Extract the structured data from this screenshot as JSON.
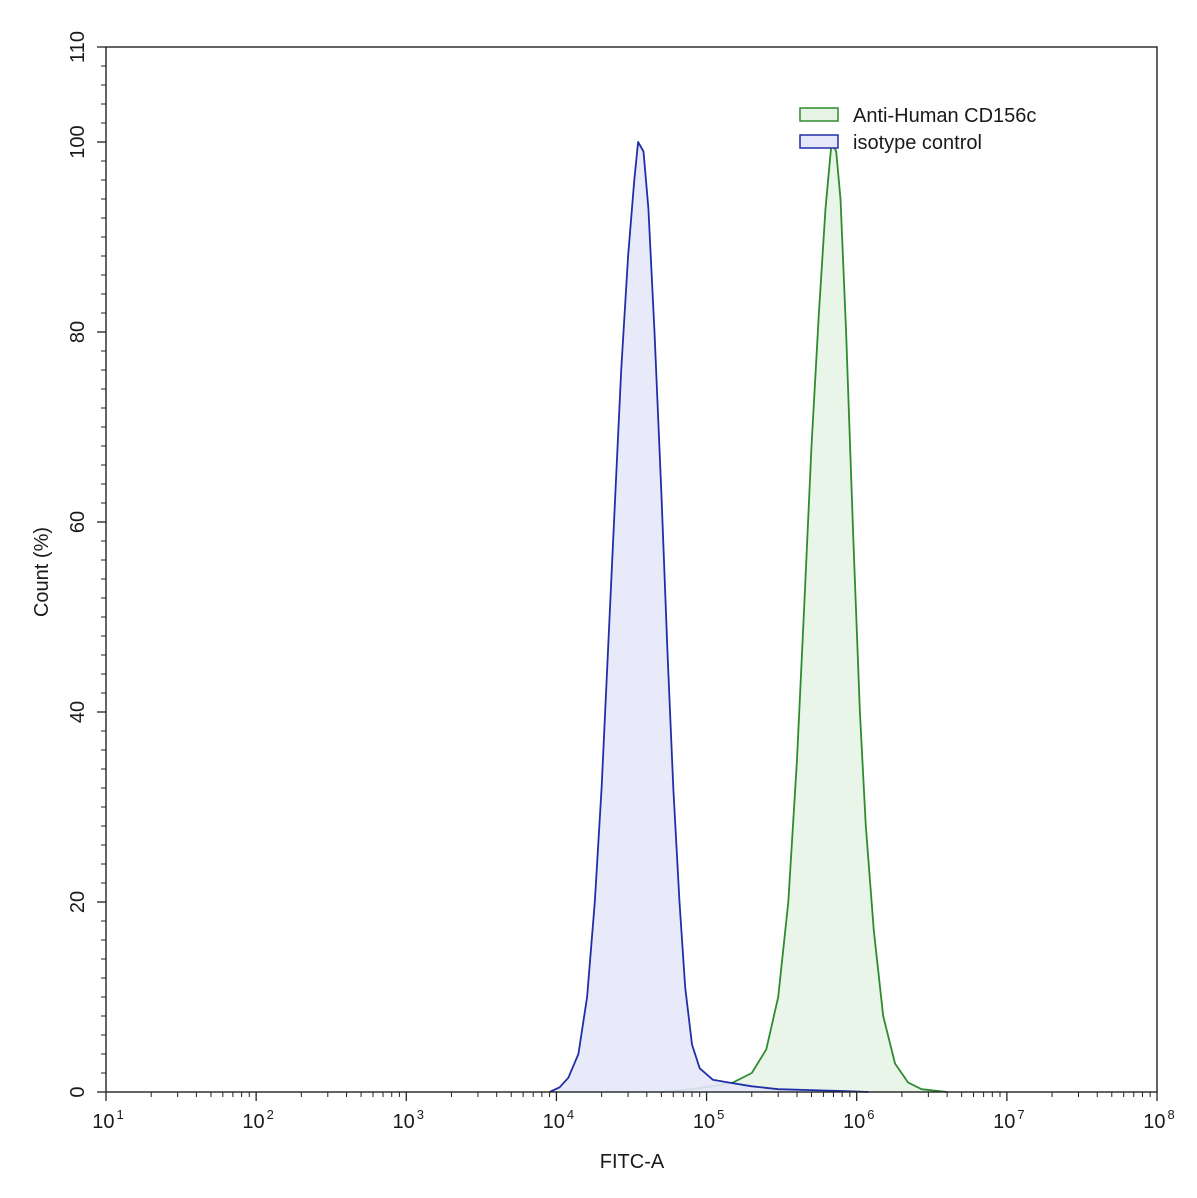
{
  "chart_data": {
    "type": "area",
    "title": "",
    "xlabel": "FITC-A",
    "ylabel": "Count  (%)",
    "xscale": "log",
    "xlim": [
      10,
      100000000
    ],
    "ylim": [
      0,
      110
    ],
    "xticks": [
      {
        "base": "10",
        "exp": "1",
        "value": 10
      },
      {
        "base": "10",
        "exp": "2",
        "value": 100
      },
      {
        "base": "10",
        "exp": "3",
        "value": 1000
      },
      {
        "base": "10",
        "exp": "4",
        "value": 10000
      },
      {
        "base": "10",
        "exp": "5",
        "value": 100000
      },
      {
        "base": "10",
        "exp": "6",
        "value": 1000000
      },
      {
        "base": "10",
        "exp": "7",
        "value": 10000000
      },
      {
        "base": "10",
        "exp": "8",
        "value": 100000000
      }
    ],
    "yticks": [
      0,
      20,
      40,
      60,
      80,
      100,
      110
    ],
    "grid": false,
    "legend_position": "top-right",
    "series": [
      {
        "name": "Anti-Human CD156c",
        "line_color": "#2e8b2e",
        "fill_color": "#e6f4e6",
        "points": [
          [
            50000,
            0
          ],
          [
            80000,
            0.3
          ],
          [
            120000,
            0.7
          ],
          [
            150000,
            1.0
          ],
          [
            200000,
            2.0
          ],
          [
            250000,
            4.5
          ],
          [
            300000,
            10
          ],
          [
            350000,
            20
          ],
          [
            400000,
            35
          ],
          [
            450000,
            52
          ],
          [
            500000,
            68
          ],
          [
            560000,
            82
          ],
          [
            620000,
            93
          ],
          [
            680000,
            100
          ],
          [
            730000,
            99
          ],
          [
            780000,
            94
          ],
          [
            850000,
            80
          ],
          [
            950000,
            58
          ],
          [
            1050000,
            40
          ],
          [
            1150000,
            28
          ],
          [
            1300000,
            17
          ],
          [
            1500000,
            8
          ],
          [
            1800000,
            3
          ],
          [
            2200000,
            1
          ],
          [
            2700000,
            0.3
          ],
          [
            4000000,
            0
          ]
        ]
      },
      {
        "name": "isotype control",
        "line_color": "#1f2fa8",
        "fill_color": "#e6e7f8",
        "points": [
          [
            9000,
            0
          ],
          [
            10500,
            0.5
          ],
          [
            12000,
            1.5
          ],
          [
            14000,
            4
          ],
          [
            16000,
            10
          ],
          [
            18000,
            20
          ],
          [
            20000,
            32
          ],
          [
            22000,
            46
          ],
          [
            24500,
            62
          ],
          [
            27000,
            76
          ],
          [
            30000,
            88
          ],
          [
            33000,
            96
          ],
          [
            35000,
            100
          ],
          [
            38000,
            99
          ],
          [
            41000,
            93
          ],
          [
            45000,
            80
          ],
          [
            50000,
            63
          ],
          [
            55000,
            46
          ],
          [
            60000,
            32
          ],
          [
            66000,
            20
          ],
          [
            72000,
            11
          ],
          [
            80000,
            5
          ],
          [
            90000,
            2.5
          ],
          [
            110000,
            1.3
          ],
          [
            140000,
            1.0
          ],
          [
            200000,
            0.6
          ],
          [
            300000,
            0.3
          ],
          [
            500000,
            0.2
          ],
          [
            800000,
            0.1
          ],
          [
            1200000,
            0
          ]
        ]
      }
    ]
  }
}
